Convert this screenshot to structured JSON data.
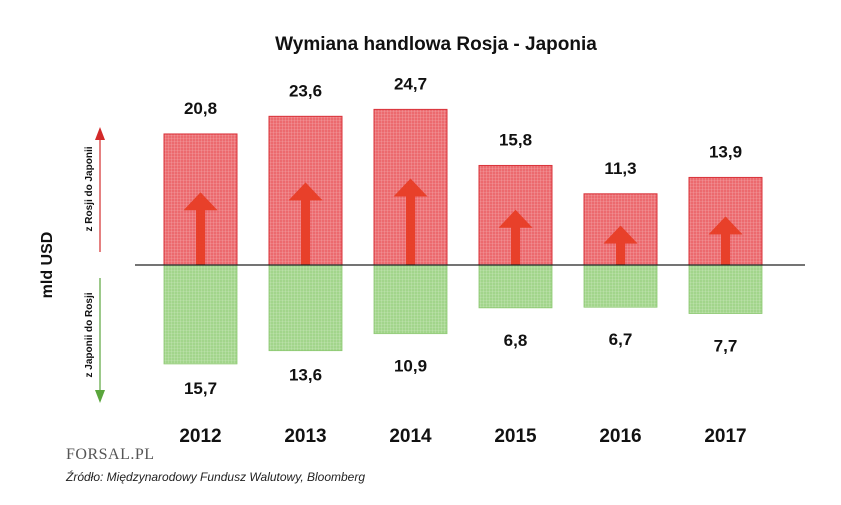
{
  "chart_data": {
    "type": "bar",
    "title": "Wymiana handlowa Rosja - Japonia",
    "categories": [
      "2012",
      "2013",
      "2014",
      "2015",
      "2016",
      "2017"
    ],
    "series": [
      {
        "name": "z Rosji do Japonii",
        "values": [
          20.8,
          23.6,
          24.7,
          15.8,
          11.3,
          13.9
        ],
        "color": "#ec6a6e"
      },
      {
        "name": "z Japonii do Rosji",
        "values": [
          15.7,
          13.6,
          10.9,
          6.8,
          6.7,
          7.7
        ],
        "color": "#9bd285"
      }
    ],
    "value_labels": {
      "up": [
        "20,8",
        "23,6",
        "24,7",
        "15,8",
        "11,3",
        "13,9"
      ],
      "down": [
        "15,7",
        "13,6",
        "10,9",
        "6,8",
        "6,7",
        "7,7"
      ]
    },
    "ylabel": "mld USD",
    "direction_labels": {
      "up": "z Rosji do Japonii",
      "down": "z Japonii do Rosji"
    },
    "colors": {
      "export_fill": "#ec6a6e",
      "import_fill": "#9bd285",
      "arrow": "#e8402a",
      "axis_arrow_up": "#d32a2a",
      "axis_arrow_down": "#5aa53c"
    }
  },
  "branding": {
    "logo": "FORSAL.PL"
  },
  "source": "Źródło: Międzynarodowy Fundusz Walutowy, Bloomberg"
}
